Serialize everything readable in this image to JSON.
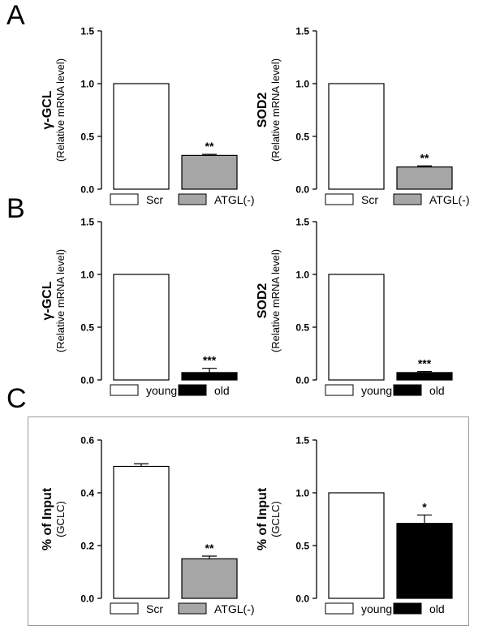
{
  "panels": {
    "A": "A",
    "B": "B",
    "C": "C"
  },
  "colors": {
    "white_bar": "#ffffff",
    "grey_bar": "#a6a6a6",
    "black_bar": "#000000",
    "stroke": "#000000"
  },
  "chart_data": [
    {
      "id": "A1",
      "type": "bar",
      "ylabel": "γ-GCL",
      "ylabel2": "(Relative mRNA level)",
      "ylim": [
        0,
        1.5
      ],
      "yticks": [
        "0.0",
        "0.5",
        "1.0",
        "1.5"
      ],
      "categories": [
        "Scr",
        "ATGL(-)"
      ],
      "values": [
        1.0,
        0.32
      ],
      "errors": [
        0,
        0.01
      ],
      "significance": [
        "",
        "**"
      ],
      "fills": [
        "#ffffff",
        "#a6a6a6"
      ]
    },
    {
      "id": "A2",
      "type": "bar",
      "ylabel": "SOD2",
      "ylabel2": "(Relative mRNA level)",
      "ylim": [
        0,
        1.5
      ],
      "yticks": [
        "0.0",
        "0.5",
        "1.0",
        "1.5"
      ],
      "categories": [
        "Scr",
        "ATGL(-)"
      ],
      "values": [
        1.0,
        0.21
      ],
      "errors": [
        0,
        0.01
      ],
      "significance": [
        "",
        "**"
      ],
      "fills": [
        "#ffffff",
        "#a6a6a6"
      ]
    },
    {
      "id": "B1",
      "type": "bar",
      "ylabel": "γ-GCL",
      "ylabel2": "(Relative mRNA level)",
      "ylim": [
        0,
        1.5
      ],
      "yticks": [
        "0.0",
        "0.5",
        "1.0",
        "1.5"
      ],
      "categories": [
        "young",
        "old"
      ],
      "values": [
        1.0,
        0.07
      ],
      "errors": [
        0,
        0.04
      ],
      "significance": [
        "",
        "***"
      ],
      "fills": [
        "#ffffff",
        "#000000"
      ]
    },
    {
      "id": "B2",
      "type": "bar",
      "ylabel": "SOD2",
      "ylabel2": "(Relative mRNA level)",
      "ylim": [
        0,
        1.5
      ],
      "yticks": [
        "0.0",
        "0.5",
        "1.0",
        "1.5"
      ],
      "categories": [
        "young",
        "old"
      ],
      "values": [
        1.0,
        0.07
      ],
      "errors": [
        0,
        0.01
      ],
      "significance": [
        "",
        "***"
      ],
      "fills": [
        "#ffffff",
        "#000000"
      ]
    },
    {
      "id": "C1",
      "type": "bar",
      "ylabel": "% of Input",
      "ylabel2": "(GCLC)",
      "ylim": [
        0,
        0.6
      ],
      "yticks": [
        "0.0",
        "0.2",
        "0.4",
        "0.6"
      ],
      "categories": [
        "Scr",
        "ATGL(-)"
      ],
      "values": [
        0.5,
        0.15
      ],
      "errors": [
        0.01,
        0.01
      ],
      "significance": [
        "",
        "**"
      ],
      "fills": [
        "#ffffff",
        "#a6a6a6"
      ]
    },
    {
      "id": "C2",
      "type": "bar",
      "ylabel": "% of Input",
      "ylabel2": "(GCLC)",
      "ylim": [
        0,
        1.5
      ],
      "yticks": [
        "0.0",
        "0.5",
        "1.0",
        "1.5"
      ],
      "categories": [
        "young",
        "old"
      ],
      "values": [
        1.0,
        0.71
      ],
      "errors": [
        0,
        0.08
      ],
      "significance": [
        "",
        "*"
      ],
      "fills": [
        "#ffffff",
        "#000000"
      ]
    }
  ]
}
